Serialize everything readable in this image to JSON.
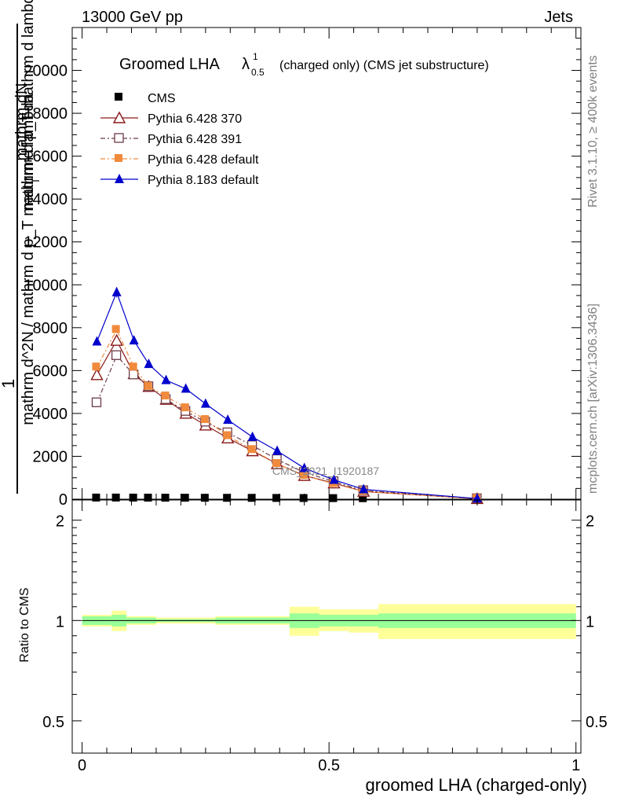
{
  "chart_data": {
    "type": "line",
    "header_left": "13000 GeV pp",
    "header_right": "Jets",
    "title": "Groomed LHA",
    "title_symbol": "λ",
    "title_sup": "1",
    "title_sub": "0.5",
    "title_suffix": "(charged only) (CMS jet substructure)",
    "ylabel_num": "1",
    "ylabel_line1": "mathrm dN",
    "ylabel_line2": "mathrm d p_T  mathrm d lambda",
    "ylabel_line3": "mathrm d^2N / mathrm d p_T mathrm d lambda",
    "ylabel_sub": "T",
    "xlabel": "groomed LHA (charged-only)",
    "ratio_ylabel": "Ratio to CMS",
    "watermark": "CMS_2021_I1920187",
    "side_top": "Rivet 3.1.10, ≥ 400k events",
    "side_bottom": "mcplots.cern.ch [arXiv:1306.3436]",
    "xlim": [
      -0.02,
      1.01
    ],
    "ylim": [
      0,
      22000
    ],
    "yticks": [
      0,
      2000,
      4000,
      6000,
      8000,
      10000,
      12000,
      14000,
      16000,
      18000,
      20000
    ],
    "ytick_labels": [
      "0",
      "2000",
      "4000",
      "6000",
      "8000",
      "10000",
      "12000",
      "14000",
      "16000",
      "18000",
      "20000"
    ],
    "xticks": [
      0,
      0.5,
      1
    ],
    "xtick_labels": [
      "0",
      "0.5",
      "1"
    ],
    "ratio_ylim": [
      0.4,
      2.3
    ],
    "ratio_yticks": [
      0.5,
      1,
      2
    ],
    "ratio_ytick_labels": [
      "0.5",
      "1",
      "2"
    ],
    "bin_edges": [
      0,
      0.05,
      0.09,
      0.12,
      0.15,
      0.19,
      0.23,
      0.27,
      0.32,
      0.37,
      0.42,
      0.48,
      0.54,
      0.6,
      1.0
    ],
    "x": [
      0.03,
      0.07,
      0.105,
      0.135,
      0.17,
      0.21,
      0.25,
      0.295,
      0.345,
      0.395,
      0.45,
      0.51,
      0.57,
      0.8
    ],
    "series": [
      {
        "name": "CMS",
        "color": "#000000",
        "marker": "square-filled",
        "dash": "none",
        "values": [
          40,
          40,
          38,
          36,
          34,
          32,
          30,
          28,
          26,
          22,
          18,
          14,
          10,
          2
        ]
      },
      {
        "name": "Pythia 6.428 370",
        "color": "#8b1a1a",
        "marker": "triangle-open",
        "dash": "solid",
        "values": [
          5800,
          7400,
          5850,
          5250,
          4650,
          4000,
          3450,
          2850,
          2250,
          1650,
          1100,
          750,
          360,
          20
        ]
      },
      {
        "name": "Pythia 6.428 391",
        "color": "#6e3b47",
        "marker": "square-open",
        "dash": "dashdot",
        "values": [
          4500,
          6700,
          5800,
          5250,
          4650,
          4100,
          3600,
          3100,
          2500,
          1850,
          1250,
          820,
          400,
          25
        ]
      },
      {
        "name": "Pythia 6.428 default",
        "color": "#f08a3c",
        "marker": "square-filled",
        "dash": "dashdot",
        "values": [
          6150,
          7900,
          6150,
          5250,
          4800,
          4250,
          3700,
          2950,
          2300,
          1650,
          1100,
          720,
          360,
          20
        ]
      },
      {
        "name": "Pythia 8.183 default",
        "color": "#0000cc",
        "marker": "triangle-filled",
        "dash": "solid",
        "values": [
          7350,
          9650,
          7400,
          6300,
          5550,
          5150,
          4450,
          3700,
          2900,
          2250,
          1450,
          900,
          460,
          30
        ]
      }
    ],
    "ratio_band_inner": [
      {
        "x0": 0.0,
        "x1": 0.06,
        "lo": 0.97,
        "hi": 1.03
      },
      {
        "x0": 0.06,
        "x1": 0.09,
        "lo": 0.96,
        "hi": 1.04
      },
      {
        "x0": 0.09,
        "x1": 0.15,
        "lo": 0.98,
        "hi": 1.02
      },
      {
        "x0": 0.15,
        "x1": 0.27,
        "lo": 0.99,
        "hi": 1.01
      },
      {
        "x0": 0.27,
        "x1": 0.42,
        "lo": 0.98,
        "hi": 1.02
      },
      {
        "x0": 0.42,
        "x1": 0.48,
        "lo": 0.95,
        "hi": 1.05
      },
      {
        "x0": 0.48,
        "x1": 0.54,
        "lo": 0.96,
        "hi": 1.04
      },
      {
        "x0": 0.54,
        "x1": 0.6,
        "lo": 0.96,
        "hi": 1.04
      },
      {
        "x0": 0.6,
        "x1": 1.0,
        "lo": 0.95,
        "hi": 1.05
      }
    ],
    "ratio_band_outer": [
      {
        "x0": 0.0,
        "x1": 0.06,
        "lo": 0.96,
        "hi": 1.04
      },
      {
        "x0": 0.06,
        "x1": 0.09,
        "lo": 0.93,
        "hi": 1.07
      },
      {
        "x0": 0.09,
        "x1": 0.15,
        "lo": 0.97,
        "hi": 1.03
      },
      {
        "x0": 0.15,
        "x1": 0.27,
        "lo": 0.98,
        "hi": 1.02
      },
      {
        "x0": 0.27,
        "x1": 0.42,
        "lo": 0.97,
        "hi": 1.03
      },
      {
        "x0": 0.42,
        "x1": 0.48,
        "lo": 0.9,
        "hi": 1.1
      },
      {
        "x0": 0.48,
        "x1": 0.54,
        "lo": 0.93,
        "hi": 1.08
      },
      {
        "x0": 0.54,
        "x1": 0.6,
        "lo": 0.92,
        "hi": 1.08
      },
      {
        "x0": 0.6,
        "x1": 1.0,
        "lo": 0.88,
        "hi": 1.12
      }
    ],
    "band_colors": {
      "inner": "#99ff99",
      "outer": "#ffff99"
    }
  }
}
